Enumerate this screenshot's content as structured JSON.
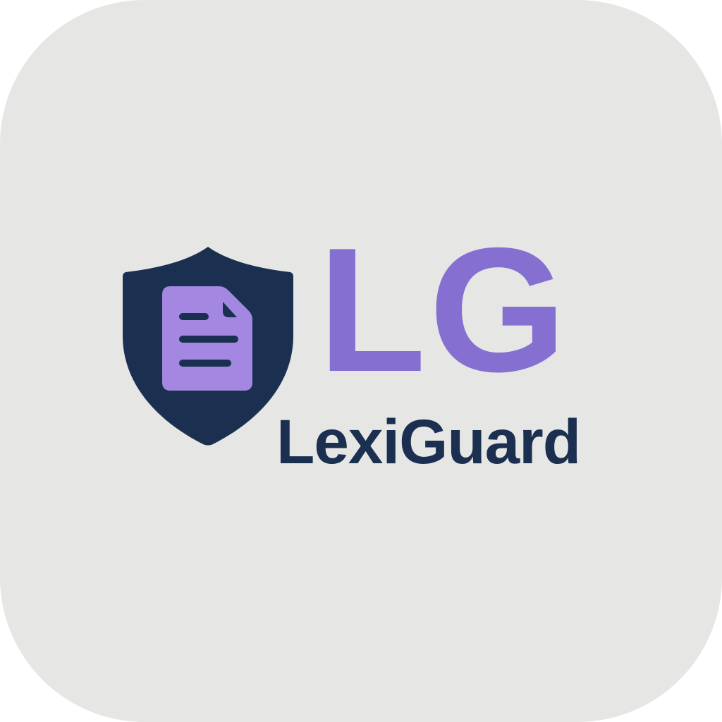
{
  "logo": {
    "monogram": "LG",
    "wordmark": "LexiGuard",
    "icon": "shield-document-icon"
  },
  "colors": {
    "background": "#e6e6e4",
    "navy": "#1b3050",
    "purple": "#8570d2",
    "document_fill": "#a387e0",
    "document_lines": "#1b3050"
  }
}
